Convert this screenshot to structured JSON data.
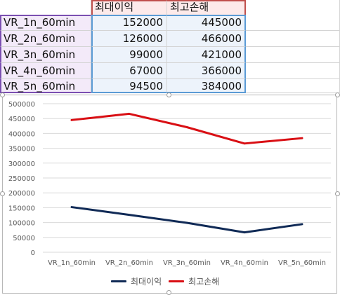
{
  "table": {
    "headers": [
      "최대이익",
      "최고손해"
    ],
    "rows": [
      [
        "VR_1n_60min",
        "152000",
        "445000"
      ],
      [
        "VR_2n_60min",
        "126000",
        "466000"
      ],
      [
        "VR_3n_60min",
        "99000",
        "421000"
      ],
      [
        "VR_4n_60min",
        "67000",
        "366000"
      ],
      [
        "VR_5n_60min",
        "94500",
        "384000"
      ]
    ]
  },
  "chart_data": {
    "type": "line",
    "categories": [
      "VR_1n_60min",
      "VR_2n_60min",
      "VR_3n_60min",
      "VR_4n_60min",
      "VR_5n_60min"
    ],
    "series": [
      {
        "name": "최대이익",
        "values": [
          152000,
          126000,
          99000,
          67000,
          94500
        ],
        "color": "#102a56"
      },
      {
        "name": "최고손해",
        "values": [
          445000,
          466000,
          421000,
          366000,
          384000
        ],
        "color": "#d90f14"
      }
    ],
    "ylim": [
      0,
      500000
    ],
    "yticks": [
      0,
      50000,
      100000,
      150000,
      200000,
      250000,
      300000,
      350000,
      400000,
      450000,
      500000
    ],
    "grid": true,
    "legend_position": "bottom"
  },
  "colors": {
    "header_fill": "#fdeaea",
    "header_border": "#c0504d",
    "label_fill": "#f3eaf9",
    "label_border": "#7b4fb1",
    "data_fill": "#edf3fb",
    "data_border": "#5b9bd5",
    "gridline": "#d9d9d9",
    "axis_text": "#595959"
  }
}
